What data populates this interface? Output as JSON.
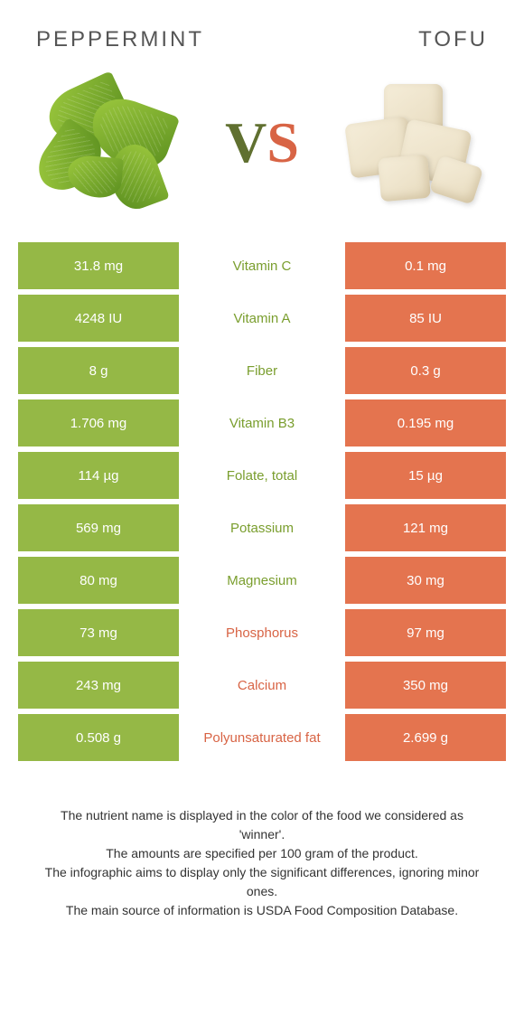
{
  "colors": {
    "green": "#95b846",
    "orange": "#e4744f",
    "greenText": "#7a9e2e",
    "orangeText": "#d86445"
  },
  "food1": "Peppermint",
  "food2": "Tofu",
  "vs": {
    "v": "V",
    "s": "S"
  },
  "rows": [
    {
      "left": "31.8 mg",
      "label": "Vitamin C",
      "right": "0.1 mg",
      "winner": "left"
    },
    {
      "left": "4248 IU",
      "label": "Vitamin A",
      "right": "85 IU",
      "winner": "left"
    },
    {
      "left": "8 g",
      "label": "Fiber",
      "right": "0.3 g",
      "winner": "left"
    },
    {
      "left": "1.706 mg",
      "label": "Vitamin B3",
      "right": "0.195 mg",
      "winner": "left"
    },
    {
      "left": "114 µg",
      "label": "Folate, total",
      "right": "15 µg",
      "winner": "left"
    },
    {
      "left": "569 mg",
      "label": "Potassium",
      "right": "121 mg",
      "winner": "left"
    },
    {
      "left": "80 mg",
      "label": "Magnesium",
      "right": "30 mg",
      "winner": "left"
    },
    {
      "left": "73 mg",
      "label": "Phosphorus",
      "right": "97 mg",
      "winner": "right"
    },
    {
      "left": "243 mg",
      "label": "Calcium",
      "right": "350 mg",
      "winner": "right"
    },
    {
      "left": "0.508 g",
      "label": "Polyunsaturated fat",
      "right": "2.699 g",
      "winner": "right"
    }
  ],
  "footer": [
    "The nutrient name is displayed in the color of the food we considered as 'winner'.",
    "The amounts are specified per 100 gram of the product.",
    "The infographic aims to display only the significant differences, ignoring minor ones.",
    "The main source of information is USDA Food Composition Database."
  ]
}
